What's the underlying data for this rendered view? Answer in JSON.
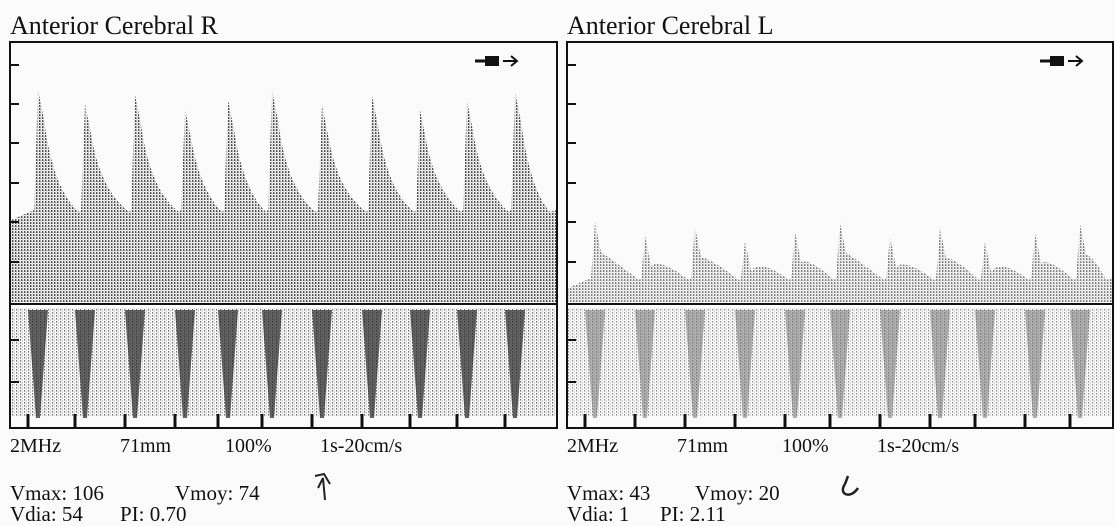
{
  "panels": [
    {
      "title": "Anterior Cerebral R",
      "settings": [
        "2MHz",
        "71mm",
        "100%",
        "1s-20cm/s"
      ],
      "measurements": {
        "line1": [
          "Vmax: 106",
          "Vmoy: 74"
        ],
        "line2": [
          "Vdia: 54",
          "PI: 0.70"
        ]
      }
    },
    {
      "title": "Anterior Cerebral L",
      "settings": [
        "2MHz",
        "71mm",
        "100%",
        "1s-20cm/s"
      ],
      "measurements": {
        "line1": [
          "Vmax: 43",
          "Vmoy: 20"
        ],
        "line2": [
          "Vdia: 1",
          "PI: 2.11"
        ]
      }
    }
  ]
}
